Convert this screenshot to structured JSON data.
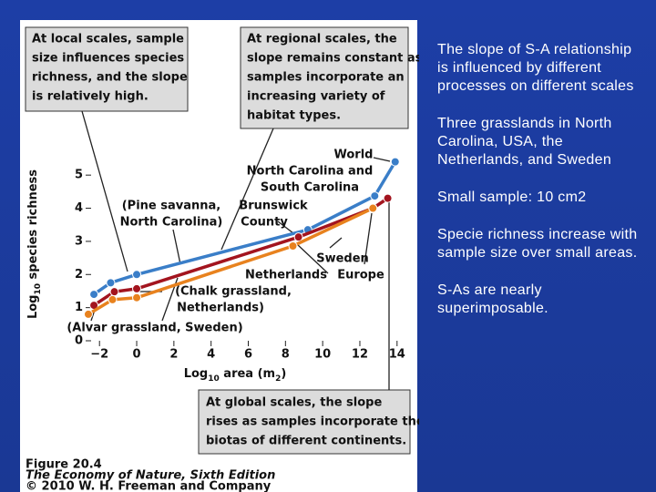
{
  "chart_data": {
    "type": "line",
    "xlabel": [
      "Log",
      "10",
      " area (m",
      "2",
      ")"
    ],
    "ylabel": [
      "Log",
      "10",
      " species richness"
    ],
    "xlim": [
      -2.5,
      14.5
    ],
    "ylim": [
      0,
      5.5
    ],
    "xticks": [
      {
        "value": -2,
        "label": "−2"
      },
      0,
      2,
      4,
      6,
      8,
      10,
      12,
      14
    ],
    "yticks": [
      0,
      1,
      2,
      3,
      4,
      5
    ],
    "series": [
      {
        "color": "#3a7ec8",
        "x": [
          -2.3,
          -1.4,
          0,
          9.2,
          12.8,
          13.9
        ],
        "values": [
          1.4,
          1.75,
          2.0,
          3.35,
          4.37,
          5.4
        ]
      },
      {
        "color": "#a3141e",
        "x": [
          -2.3,
          -1.2,
          0,
          8.7,
          12.7,
          13.5
        ],
        "values": [
          1.07,
          1.48,
          1.57,
          3.13,
          4.0,
          4.3
        ]
      },
      {
        "color": "#e8821e",
        "x": [
          -2.6,
          -1.3,
          0,
          8.4,
          12.7
        ],
        "values": [
          0.8,
          1.24,
          1.3,
          2.86,
          4.0
        ]
      }
    ],
    "labels": [
      "World",
      "North Carolina and",
      "South Carolina",
      "(Pine savanna,",
      "North Carolina)",
      "Brunswick",
      "County",
      "Sweden",
      "Netherlands",
      "Europe",
      "(Chalk grassland,",
      "Netherlands)",
      "(Alvar grassland, Sweden)"
    ],
    "annotations": [
      [
        "At local scales, sample",
        "size influences species",
        "richness, and the slope",
        "is relatively high."
      ],
      [
        "At regional scales, the",
        "slope remains constant as",
        "samples incorporate an",
        "increasing variety of",
        "habitat types."
      ],
      [
        "At global scales, the slope",
        "rises as samples incorporate the",
        "biotas of different continents."
      ]
    ],
    "caption": [
      "Figure 20.4",
      "The Economy of Nature, Sixth Edition",
      "© 2010 W. H. Freeman and Company"
    ]
  },
  "slide": {
    "paragraphs": [
      "The slope of S-A relationship is influenced by different processes on different scales",
      "Three grasslands in North Carolina, USA, the Netherlands, and Sweden",
      "Small sample: 10 cm2",
      "Specie richness increase with sample size over small areas.",
      "S-As are nearly superimposable."
    ]
  }
}
